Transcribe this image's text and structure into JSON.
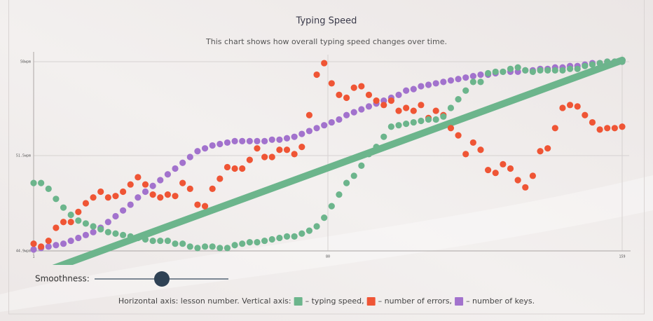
{
  "chart_data": {
    "type": "scatter",
    "title": "Typing Speed",
    "subtitle": "This chart shows how overall typing speed changes over time.",
    "xlim": [
      1,
      159
    ],
    "xticks": [
      1,
      80,
      159
    ],
    "ylim": [
      44.9,
      58
    ],
    "yticks": [
      {
        "value": 44.9,
        "label": "44.9wpm"
      },
      {
        "value": 51.5,
        "label": "51.5wpm"
      },
      {
        "value": 58,
        "label": "58wpm"
      }
    ],
    "grid": true,
    "x": [
      1,
      3,
      5,
      7,
      9,
      11,
      13,
      15,
      17,
      19,
      21,
      23,
      25,
      27,
      29,
      31,
      33,
      35,
      37,
      39,
      41,
      43,
      45,
      47,
      49,
      51,
      53,
      55,
      57,
      59,
      61,
      63,
      65,
      67,
      69,
      71,
      73,
      75,
      77,
      79,
      81,
      83,
      85,
      87,
      89,
      91,
      93,
      95,
      97,
      99,
      101,
      103,
      105,
      107,
      109,
      111,
      113,
      115,
      117,
      119,
      121,
      123,
      125,
      127,
      129,
      131,
      133,
      135,
      137,
      139,
      141,
      143,
      145,
      147,
      149,
      151,
      153,
      155,
      157,
      159
    ],
    "series": [
      {
        "name": "– typing speed,",
        "color": "#6cb58c",
        "values": [
          49.6,
          49.6,
          49.2,
          48.5,
          47.9,
          47.4,
          47.0,
          46.8,
          46.6,
          46.4,
          46.2,
          46.1,
          46.0,
          45.9,
          45.8,
          45.7,
          45.6,
          45.6,
          45.6,
          45.4,
          45.4,
          45.2,
          45.1,
          45.2,
          45.2,
          45.1,
          45.1,
          45.3,
          45.4,
          45.5,
          45.5,
          45.6,
          45.7,
          45.8,
          45.9,
          45.9,
          46.1,
          46.3,
          46.6,
          47.2,
          48.0,
          48.8,
          49.6,
          50.1,
          50.8,
          51.6,
          52.1,
          52.8,
          53.5,
          53.6,
          53.7,
          53.8,
          53.9,
          54.0,
          54.0,
          54.2,
          54.8,
          55.4,
          56.0,
          56.6,
          56.6,
          57.2,
          57.3,
          57.3,
          57.5,
          57.6,
          57.4,
          57.3,
          57.4,
          57.4,
          57.4,
          57.4,
          57.5,
          57.5,
          57.7,
          57.8,
          57.9,
          58.0,
          58.0,
          58.0
        ]
      },
      {
        "name": "– number of errors,",
        "color": "#ef5535",
        "values": [
          45.4,
          45.2,
          45.6,
          46.5,
          46.9,
          46.9,
          47.6,
          48.2,
          48.6,
          49.0,
          48.6,
          48.7,
          49.0,
          49.5,
          50.0,
          49.5,
          48.8,
          48.6,
          48.8,
          48.7,
          49.6,
          49.2,
          48.1,
          48.0,
          49.2,
          49.9,
          50.7,
          50.6,
          50.6,
          51.2,
          52.0,
          51.4,
          51.4,
          51.9,
          51.9,
          51.6,
          52.1,
          54.3,
          57.1,
          57.9,
          56.5,
          55.7,
          55.5,
          56.2,
          56.3,
          55.7,
          55.3,
          55.0,
          55.3,
          54.6,
          54.8,
          54.6,
          55.0,
          54.1,
          54.6,
          54.3,
          53.4,
          52.9,
          51.6,
          52.4,
          51.9,
          50.5,
          50.3,
          50.9,
          50.6,
          49.8,
          49.3,
          50.1,
          51.8,
          52.0,
          53.4,
          54.8,
          55.0,
          54.9,
          54.3,
          53.8,
          53.3,
          53.4,
          53.4,
          53.5
        ]
      },
      {
        "name": "– number of keys.",
        "color": "#a272cd",
        "values": [
          45.0,
          45.1,
          45.2,
          45.3,
          45.4,
          45.6,
          45.8,
          46.0,
          46.2,
          46.5,
          46.9,
          47.3,
          47.7,
          48.1,
          48.6,
          49.0,
          49.4,
          49.8,
          50.2,
          50.6,
          51.0,
          51.4,
          51.8,
          52.0,
          52.2,
          52.3,
          52.4,
          52.5,
          52.5,
          52.5,
          52.5,
          52.5,
          52.6,
          52.6,
          52.7,
          52.8,
          53.0,
          53.2,
          53.4,
          53.6,
          53.8,
          54.0,
          54.3,
          54.5,
          54.7,
          54.9,
          55.1,
          55.3,
          55.5,
          55.7,
          56.0,
          56.1,
          56.3,
          56.4,
          56.5,
          56.6,
          56.7,
          56.8,
          56.9,
          57.0,
          57.1,
          57.1,
          57.2,
          57.3,
          57.3,
          57.3,
          57.4,
          57.4,
          57.5,
          57.5,
          57.6,
          57.6,
          57.7,
          57.7,
          57.8,
          57.9,
          57.9,
          58.0,
          58.0,
          58.0
        ]
      }
    ],
    "trend": {
      "color": "#6cb58c",
      "x": [
        1,
        159
      ],
      "values": [
        43.2,
        58.1
      ]
    }
  },
  "controls": {
    "smoothness_label": "Smoothness:"
  },
  "footnote": {
    "text": "Horizontal axis: lesson number. Vertical axis:"
  }
}
